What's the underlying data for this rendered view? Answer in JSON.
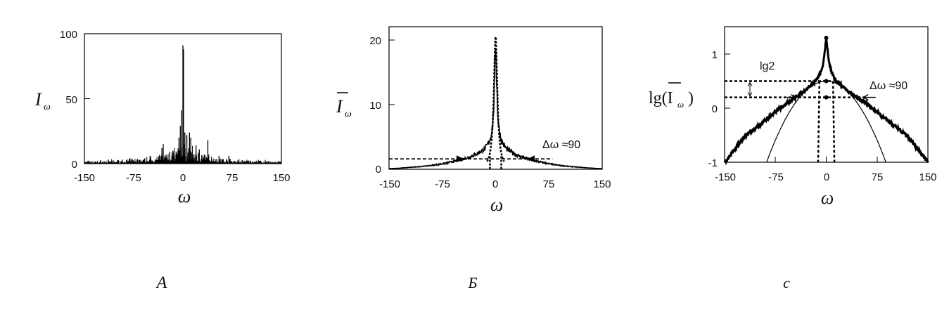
{
  "chart_data": [
    {
      "panel_label": "А",
      "type": "bar",
      "xlabel": "ω",
      "ylabel": "I",
      "ylabel_sub": "ω",
      "xlim": [
        -150,
        150
      ],
      "ylim": [
        0,
        100
      ],
      "xticks": [
        "-150",
        "-75",
        "0",
        "75",
        "150"
      ],
      "yticks": [
        "0",
        "50",
        "100"
      ],
      "grid": false,
      "spikes": [
        [
          0,
          91
        ],
        [
          1,
          88
        ],
        [
          -2,
          41
        ],
        [
          -4,
          29
        ],
        [
          -6,
          20
        ],
        [
          3,
          24
        ],
        [
          6,
          22
        ],
        [
          10,
          24
        ],
        [
          12,
          20
        ],
        [
          -30,
          15
        ],
        [
          -32,
          12
        ],
        [
          38,
          18
        ],
        [
          20,
          14
        ],
        [
          -15,
          10
        ],
        [
          -20,
          9
        ],
        [
          25,
          11
        ],
        [
          55,
          6
        ],
        [
          70,
          6
        ],
        [
          -50,
          6
        ]
      ],
      "background_level": 2,
      "envelope": [
        [
          -150,
          1.5
        ],
        [
          -100,
          2
        ],
        [
          -60,
          3
        ],
        [
          -35,
          5
        ],
        [
          -15,
          8
        ],
        [
          0,
          10
        ],
        [
          15,
          8
        ],
        [
          35,
          5
        ],
        [
          60,
          3
        ],
        [
          100,
          2
        ],
        [
          150,
          1.5
        ]
      ]
    },
    {
      "panel_label": "Б",
      "type": "line",
      "xlabel": "ω",
      "ylabel": "I",
      "ylabel_sub": "ω",
      "ylabel_overline": true,
      "xlim": [
        -150,
        150
      ],
      "ylim": [
        0,
        22
      ],
      "xticks": [
        "-150",
        "-75",
        "0",
        "75",
        "150"
      ],
      "yticks": [
        "0",
        "10",
        "20"
      ],
      "grid": false,
      "annotation": "Δω ≈90",
      "mean_spectrum": [
        [
          -150,
          0.1
        ],
        [
          -120,
          0.3
        ],
        [
          -90,
          0.6
        ],
        [
          -60,
          1.2
        ],
        [
          -45,
          1.6
        ],
        [
          -30,
          2.2
        ],
        [
          -15,
          3.2
        ],
        [
          -8,
          4.5
        ],
        [
          -4,
          7
        ],
        [
          -2,
          12
        ],
        [
          0,
          20.5
        ],
        [
          2,
          12
        ],
        [
          4,
          7
        ],
        [
          8,
          4.5
        ],
        [
          15,
          3.2
        ],
        [
          30,
          2.2
        ],
        [
          45,
          1.6
        ],
        [
          60,
          1.2
        ],
        [
          90,
          0.6
        ],
        [
          120,
          0.3
        ],
        [
          150,
          0.1
        ]
      ],
      "central_peak_fit": {
        "peak": 20.5,
        "halfwidth": 3
      },
      "half_level": 1.6,
      "width_markers": [
        -45,
        45
      ]
    },
    {
      "panel_label": "с",
      "type": "line",
      "xlabel": "ω",
      "ylabel": "lg(I",
      "ylabel_sub": "ω",
      "ylabel_close": ")",
      "ylabel_overline": true,
      "xlim": [
        -150,
        150
      ],
      "ylim": [
        -1,
        1.5
      ],
      "xticks": [
        "-150",
        "-75",
        "0",
        "75",
        "150"
      ],
      "yticks": [
        "-1",
        "0",
        "1"
      ],
      "grid": false,
      "annotations": [
        "lg2",
        "Δω ≈90"
      ],
      "mean_spectrum_log": "lg of panel Б mean spectrum",
      "gaussian_fit": {
        "top": 0.5,
        "zero_crossing_at_minus1": 88
      },
      "levels": [
        0.5,
        0.2
      ],
      "points": [
        [
          0,
          1.3
        ],
        [
          0,
          0.5
        ],
        [
          0,
          0.2
        ]
      ],
      "vertical_lines": [
        -10,
        10
      ],
      "width_markers": [
        -45,
        45
      ]
    }
  ]
}
